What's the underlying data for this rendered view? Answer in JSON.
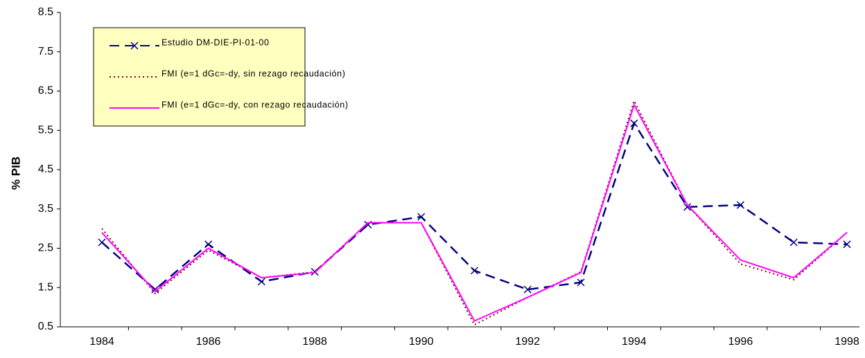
{
  "chart_data": {
    "type": "line",
    "y_label": "% PIB",
    "categories": [
      "1984",
      null,
      "1986",
      null,
      "1988",
      null,
      "1990",
      null,
      "1992",
      null,
      "1994",
      null,
      "1996",
      null,
      "1998"
    ],
    "series": [
      {
        "name": "Estudio DM-DIE-PI-01-00",
        "color": "#000080",
        "dash": "14,8",
        "marker": "x",
        "values": [
          2.65,
          1.45,
          2.6,
          1.65,
          1.9,
          3.1,
          3.3,
          1.93,
          1.45,
          1.63,
          5.68,
          3.55,
          3.6,
          2.65,
          2.6
        ]
      },
      {
        "name": "FMI (e=1 dGc=-dy, sin rezago recaudación)",
        "color": "#800000",
        "dash": "2,4",
        "values": [
          3.0,
          1.35,
          2.45,
          1.75,
          1.9,
          3.15,
          3.15,
          0.55,
          1.25,
          1.9,
          6.25,
          3.6,
          2.1,
          1.7,
          2.9
        ]
      },
      {
        "name": "FMI (e=1 dGc=-dy, con rezago recaudación)",
        "color": "#ff00ff",
        "dash": "none",
        "values": [
          2.9,
          1.4,
          2.5,
          1.75,
          1.88,
          3.15,
          3.15,
          0.65,
          1.25,
          1.88,
          6.15,
          3.6,
          2.2,
          1.75,
          2.9
        ]
      }
    ],
    "ylim": [
      0.5,
      8.5
    ],
    "yticks": [
      0.5,
      1.5,
      2.5,
      3.5,
      4.5,
      5.5,
      6.5,
      7.5,
      8.5
    ],
    "legend": "upper-left"
  }
}
